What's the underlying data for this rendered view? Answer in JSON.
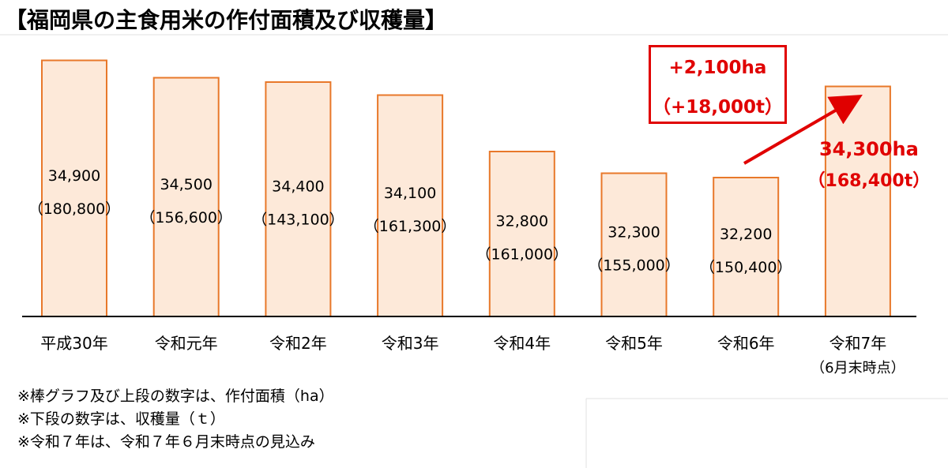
{
  "title": "【福岡県の主食用米の作付面積及び収穫量】",
  "colors": {
    "bar_fill": "#fde9d9",
    "bar_stroke": "#e8782a",
    "highlight": "#e00000",
    "axis": "#000000"
  },
  "chart_data": {
    "type": "bar",
    "categories": [
      "平成30年",
      "令和元年",
      "令和2年",
      "令和3年",
      "令和4年",
      "令和5年",
      "令和6年",
      "令和7年"
    ],
    "category_sublabels": [
      "",
      "",
      "",
      "",
      "",
      "",
      "",
      "（6月末時点）"
    ],
    "series": [
      {
        "values": [
          34900,
          34500,
          34400,
          34100,
          32800,
          32300,
          32200,
          34300
        ]
      },
      {
        "values": [
          180800,
          156600,
          143100,
          161300,
          161000,
          155000,
          150400,
          168400
        ]
      }
    ],
    "area_labels": [
      "34,900",
      "34,500",
      "34,400",
      "34,100",
      "32,800",
      "32,300",
      "32,200",
      "34,300ha"
    ],
    "harvest_labels": [
      "（180,800）",
      "（156,600）",
      "（143,100）",
      "（161,300）",
      "（161,000）",
      "（155,000）",
      "（150,400）",
      "（168,400t）"
    ],
    "ylim": [
      29000,
      35200
    ],
    "grid": false,
    "annotation": {
      "line1": "+2,100ha",
      "line2": "（+18,000t）"
    }
  },
  "notes": [
    "※棒グラフ及び上段の数字は、作付面積（ha）",
    "※下段の数字は、収穫量（ｔ）",
    "※令和７年は、令和７年６月末時点の見込み"
  ]
}
